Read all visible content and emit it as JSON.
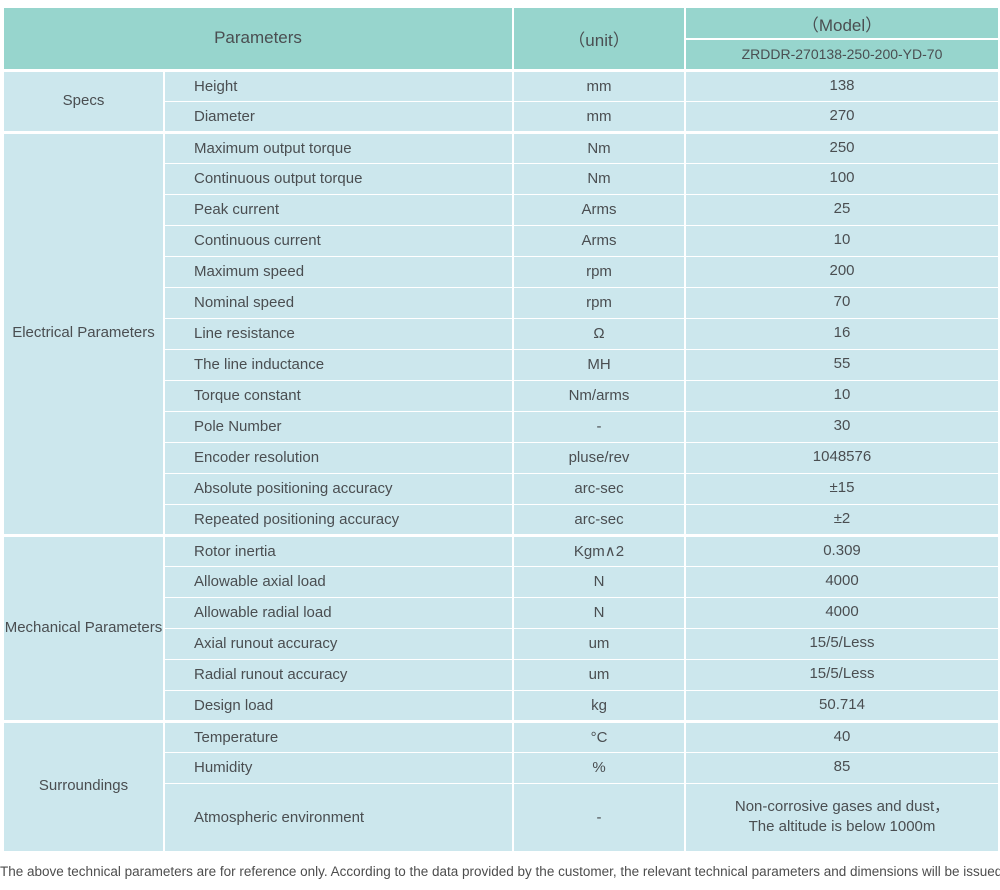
{
  "colors": {
    "header_bg": "#97d5cd",
    "row_bg": "#cce7ed",
    "text": "#4a4e51",
    "divider": "#ffffff"
  },
  "table": {
    "header": {
      "parameters_label": "Parameters",
      "unit_label": "（unit）",
      "model_label": "（Model）",
      "model_value": "ZRDDR-270138-250-200-YD-70"
    },
    "sections": [
      {
        "name": "Specs",
        "rows": [
          {
            "parameter": "Height",
            "unit": "mm",
            "value": "138"
          },
          {
            "parameter": "Diameter",
            "unit": "mm",
            "value": "270"
          }
        ]
      },
      {
        "name": "Electrical Parameters",
        "rows": [
          {
            "parameter": "Maximum output torque",
            "unit": "Nm",
            "value": "250"
          },
          {
            "parameter": "Continuous output torque",
            "unit": "Nm",
            "value": "100"
          },
          {
            "parameter": "Peak current",
            "unit": "Arms",
            "value": "25"
          },
          {
            "parameter": "Continuous current",
            "unit": "Arms",
            "value": "10"
          },
          {
            "parameter": "Maximum speed",
            "unit": "rpm",
            "value": "200"
          },
          {
            "parameter": "Nominal speed",
            "unit": "rpm",
            "value": "70"
          },
          {
            "parameter": "Line resistance",
            "unit": "Ω",
            "value": "16"
          },
          {
            "parameter": "The line inductance",
            "unit": "MH",
            "value": "55"
          },
          {
            "parameter": "Torque constant",
            "unit": "Nm/arms",
            "value": "10"
          },
          {
            "parameter": "Pole Number",
            "unit": "-",
            "value": "30"
          },
          {
            "parameter": "Encoder resolution",
            "unit": "pluse/rev",
            "value": "1048576"
          },
          {
            "parameter": "Absolute positioning accuracy",
            "unit": "arc-sec",
            "value": "±15"
          },
          {
            "parameter": "Repeated positioning accuracy",
            "unit": "arc-sec",
            "value": "±2"
          }
        ]
      },
      {
        "name": "Mechanical Parameters",
        "rows": [
          {
            "parameter": "Rotor inertia",
            "unit": "Kgm∧2",
            "value": "0.309"
          },
          {
            "parameter": "Allowable axial load",
            "unit": "N",
            "value": "4000"
          },
          {
            "parameter": "Allowable radial load",
            "unit": "N",
            "value": "4000"
          },
          {
            "parameter": "Axial runout accuracy",
            "unit": "um",
            "value": "15/5/Less"
          },
          {
            "parameter": "Radial runout accuracy",
            "unit": "um",
            "value": "15/5/Less"
          },
          {
            "parameter": "Design load",
            "unit": "kg",
            "value": "50.714"
          }
        ]
      },
      {
        "name": "Surroundings",
        "rows": [
          {
            "parameter": "Temperature",
            "unit": "°C",
            "value": "40"
          },
          {
            "parameter": "Humidity",
            "unit": "%",
            "value": "85"
          },
          {
            "parameter": "Atmospheric environment",
            "unit": "-",
            "value": "Non-corrosive gases and dust，\nThe altitude is below 1000m",
            "tall": true
          }
        ]
      }
    ]
  },
  "footer": {
    "note": "The above technical parameters are for reference only. According to the data provided by the customer, the relevant technical parameters and dimensions will be issued."
  }
}
